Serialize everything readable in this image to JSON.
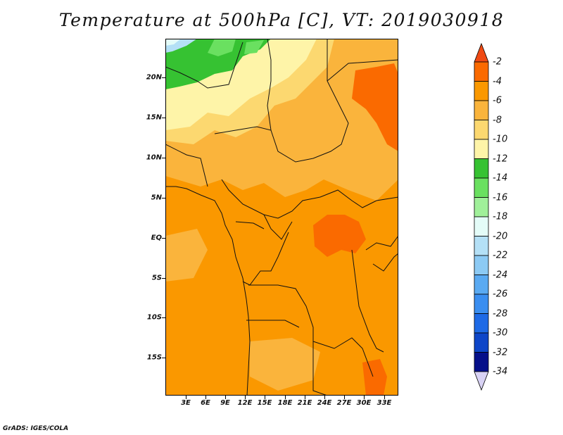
{
  "title": "Temperature at 500hPa [C], VT: 2019030918",
  "credit": "GrADS: IGES/COLA",
  "map": {
    "lat_labels": [
      "20N",
      "15N",
      "10N",
      "5N",
      "EQ",
      "5S",
      "10S",
      "15S"
    ],
    "lon_labels": [
      "3E",
      "6E",
      "9E",
      "12E",
      "15E",
      "18E",
      "21E",
      "24E",
      "27E",
      "30E",
      "33E"
    ]
  },
  "colorbar": {
    "levels": [
      "-2",
      "-4",
      "-6",
      "-8",
      "-10",
      "-12",
      "-14",
      "-16",
      "-18",
      "-20",
      "-22",
      "-24",
      "-26",
      "-28",
      "-30",
      "-32",
      "-34"
    ],
    "colors": [
      "#f04a14",
      "#fa6a00",
      "#fa9800",
      "#fab43c",
      "#fcd870",
      "#fef4a8",
      "#36c232",
      "#6ae060",
      "#a0f09a",
      "#e4fcf8",
      "#b4e0f6",
      "#8ccaf4",
      "#5aaaf2",
      "#3a8ef0",
      "#1e6ae6",
      "#0e46c8",
      "#06108a",
      "#d8d2f4"
    ]
  }
}
